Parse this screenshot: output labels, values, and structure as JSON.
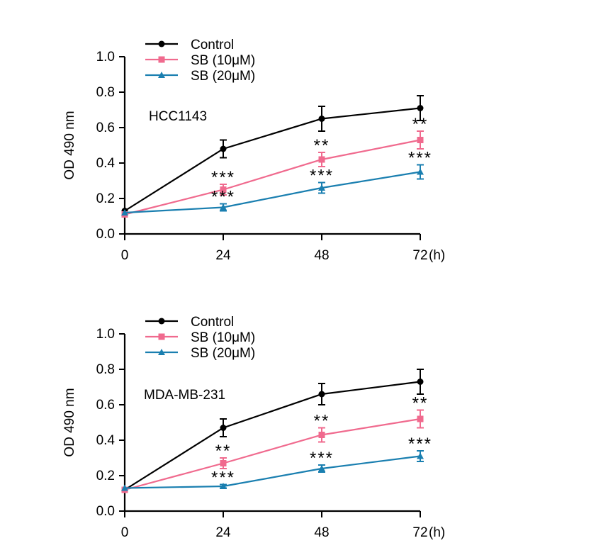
{
  "chart_data": [
    {
      "type": "line",
      "annotation": "HCC1143",
      "ylabel": "OD 490 nm",
      "xunit": "(h)",
      "x": [
        0,
        24,
        48,
        72
      ],
      "xticks": [
        "0",
        "24",
        "48",
        "72"
      ],
      "ylim": [
        0.0,
        1.0
      ],
      "yticks": [
        "0.0",
        "0.2",
        "0.4",
        "0.6",
        "0.8",
        "1.0"
      ],
      "series": [
        {
          "name": "Control",
          "color": "#000000",
          "marker": "circle",
          "values": [
            0.13,
            0.48,
            0.65,
            0.71
          ],
          "err": [
            0.01,
            0.05,
            0.07,
            0.07
          ],
          "sig": [
            "",
            "",
            "",
            ""
          ]
        },
        {
          "name": "SB (10μM)",
          "color": "#f06a8e",
          "marker": "square",
          "values": [
            0.11,
            0.25,
            0.42,
            0.53
          ],
          "err": [
            0.01,
            0.03,
            0.04,
            0.05
          ],
          "sig": [
            "",
            "***",
            "**",
            "**"
          ]
        },
        {
          "name": "SB (20μM)",
          "color": "#1a7fb0",
          "marker": "triangle",
          "values": [
            0.12,
            0.15,
            0.26,
            0.35
          ],
          "err": [
            0.01,
            0.02,
            0.03,
            0.04
          ],
          "sig": [
            "",
            "***",
            "***",
            "***"
          ]
        }
      ]
    },
    {
      "type": "line",
      "annotation": "MDA-MB-231",
      "ylabel": "OD 490 nm",
      "xunit": "(h)",
      "x": [
        0,
        24,
        48,
        72
      ],
      "xticks": [
        "0",
        "24",
        "48",
        "72"
      ],
      "ylim": [
        0.0,
        1.0
      ],
      "yticks": [
        "0.0",
        "0.2",
        "0.4",
        "0.6",
        "0.8",
        "1.0"
      ],
      "series": [
        {
          "name": "Control",
          "color": "#000000",
          "marker": "circle",
          "values": [
            0.12,
            0.47,
            0.66,
            0.73
          ],
          "err": [
            0.01,
            0.05,
            0.06,
            0.07
          ],
          "sig": [
            "",
            "",
            "",
            ""
          ]
        },
        {
          "name": "SB (10μM)",
          "color": "#f06a8e",
          "marker": "square",
          "values": [
            0.12,
            0.27,
            0.43,
            0.52
          ],
          "err": [
            0.01,
            0.03,
            0.04,
            0.05
          ],
          "sig": [
            "",
            "**",
            "**",
            "**"
          ]
        },
        {
          "name": "SB (20μM)",
          "color": "#1a7fb0",
          "marker": "triangle",
          "values": [
            0.13,
            0.14,
            0.24,
            0.31
          ],
          "err": [
            0.01,
            0.01,
            0.02,
            0.03
          ],
          "sig": [
            "",
            "***",
            "***",
            "***"
          ]
        }
      ]
    }
  ]
}
